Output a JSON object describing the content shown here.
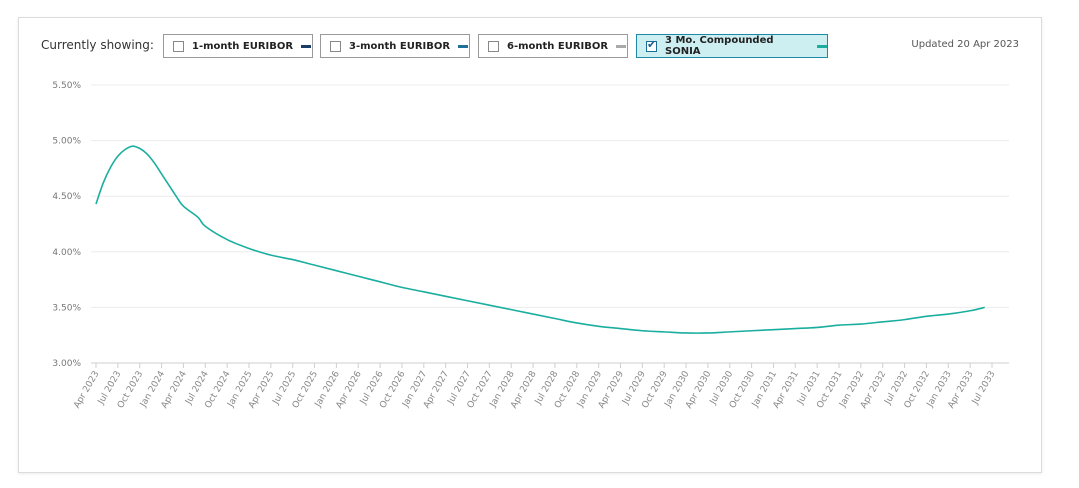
{
  "header": {
    "currently_showing": "Currently showing:",
    "updated": "Updated 20 Apr 2023",
    "toggles": [
      {
        "label": "1-month EURIBOR",
        "checked": false,
        "color": "#1a3d66"
      },
      {
        "label": "3-month EURIBOR",
        "checked": false,
        "color": "#1f6f9a"
      },
      {
        "label": "6-month EURIBOR",
        "checked": false,
        "color": "#a9a9a9"
      },
      {
        "label": "3 Mo. Compounded SONIA",
        "checked": true,
        "color": "#1aae9f"
      }
    ]
  },
  "chart_data": {
    "type": "line",
    "x_ticks": [
      "Apr 2023",
      "Jul 2023",
      "Oct 2023",
      "Jan 2024",
      "Apr 2024",
      "Jul 2024",
      "Oct 2024",
      "Jan 2025",
      "Apr 2025",
      "Jul 2025",
      "Oct 2025",
      "Jan 2026",
      "Apr 2026",
      "Jul 2026",
      "Oct 2026",
      "Jan 2027",
      "Apr 2027",
      "Jul 2027",
      "Oct 2027",
      "Jan 2028",
      "Apr 2028",
      "Jul 2028",
      "Oct 2028",
      "Jan 2029",
      "Apr 2029",
      "Jul 2029",
      "Oct 2029",
      "Jan 2030",
      "Apr 2030",
      "Jul 2030",
      "Oct 2030",
      "Jan 2031",
      "Apr 2031",
      "Jul 2031",
      "Oct 2031",
      "Jan 2032",
      "Apr 2032",
      "Jul 2032",
      "Oct 2032",
      "Jan 2033",
      "Apr 2033",
      "Jul 2033"
    ],
    "y_ticks": [
      "5.50%",
      "5.00%",
      "4.50%",
      "4.00%",
      "3.50%",
      "3.00%"
    ],
    "ylim": [
      3.0,
      5.5
    ],
    "grid": true,
    "series": [
      {
        "name": "3 Mo. Compounded SONIA",
        "color": "#1aae9f",
        "x": [
          "Apr 2023",
          "May 2023",
          "Jun 2023",
          "Jul 2023",
          "Aug 2023",
          "Sep 2023",
          "Oct 2023",
          "Nov 2023",
          "Dec 2023",
          "Jan 2024",
          "Feb 2024",
          "Mar 2024",
          "Apr 2024",
          "Jun 2024",
          "Jul 2024",
          "Oct 2024",
          "Jan 2025",
          "Apr 2025",
          "Jul 2025",
          "Oct 2025",
          "Jan 2026",
          "Apr 2026",
          "Jul 2026",
          "Oct 2026",
          "Jan 2027",
          "Apr 2027",
          "Jul 2027",
          "Oct 2027",
          "Jan 2028",
          "Apr 2028",
          "Jul 2028",
          "Oct 2028",
          "Jan 2029",
          "Apr 2029",
          "Jul 2029",
          "Oct 2029",
          "Jan 2030",
          "Apr 2030",
          "Jul 2030",
          "Oct 2030",
          "Jan 2031",
          "Apr 2031",
          "Jul 2031",
          "Oct 2031",
          "Jan 2032",
          "Apr 2032",
          "Jul 2032",
          "Oct 2032",
          "Jan 2033",
          "Apr 2033",
          "Jun 2033"
        ],
        "values": [
          4.43,
          4.62,
          4.76,
          4.86,
          4.92,
          4.95,
          4.93,
          4.88,
          4.8,
          4.7,
          4.6,
          4.5,
          4.41,
          4.31,
          4.23,
          4.11,
          4.03,
          3.97,
          3.93,
          3.88,
          3.83,
          3.78,
          3.73,
          3.68,
          3.64,
          3.6,
          3.56,
          3.52,
          3.48,
          3.44,
          3.4,
          3.36,
          3.33,
          3.31,
          3.29,
          3.28,
          3.27,
          3.27,
          3.28,
          3.29,
          3.3,
          3.31,
          3.32,
          3.34,
          3.35,
          3.37,
          3.39,
          3.42,
          3.44,
          3.47,
          3.5
        ]
      }
    ]
  }
}
